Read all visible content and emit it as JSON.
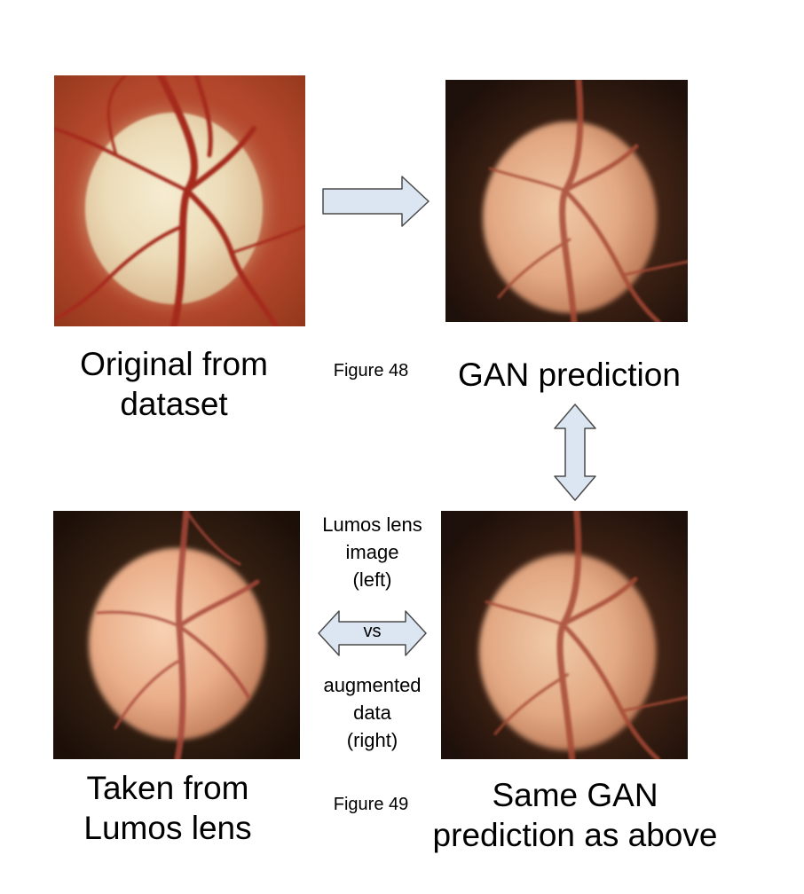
{
  "images": {
    "original": {
      "icon": "fundus-optic-disc-original"
    },
    "gan_top": {
      "icon": "fundus-optic-disc-gan"
    },
    "lumos": {
      "icon": "fundus-optic-disc-lumos"
    },
    "gan_bottom": {
      "icon": "fundus-optic-disc-gan"
    }
  },
  "labels": {
    "original": [
      "Original from",
      "dataset"
    ],
    "gan_prediction": "GAN prediction",
    "figure48": "Figure 48",
    "lumos_taken": [
      "Taken from",
      "Lumos lens"
    ],
    "same_gan": [
      "Same GAN",
      "prediction as above"
    ],
    "figure49": "Figure 49",
    "lumos_image": [
      "Lumos lens",
      "image",
      "(left)"
    ],
    "vs": "vs",
    "augmented": [
      "augmented",
      "data",
      "(right)"
    ]
  },
  "colors": {
    "arrow_fill": "#dce6f2",
    "arrow_stroke": "#4a4a4a"
  }
}
